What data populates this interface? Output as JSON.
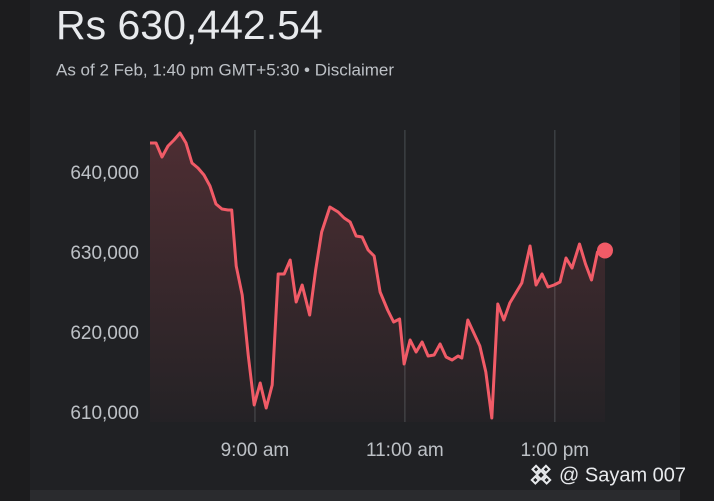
{
  "chart_data": {
    "type": "line",
    "title": "Rs 630,442.54",
    "subtitle": "As of 2 Feb, 1:40 pm GMT+5:30 • Disclaimer",
    "watermark": "@ Sayam 007",
    "color": "#f15b67",
    "grid": "x",
    "xlim": [
      7.6,
      13.67
    ],
    "ylim": [
      609000,
      646000
    ],
    "xticks": [
      {
        "value": 9,
        "label": "9:00 am"
      },
      {
        "value": 11,
        "label": "11:00 am"
      },
      {
        "value": 13,
        "label": "1:00 pm"
      }
    ],
    "yticks": [
      {
        "value": 610000,
        "label": "610,000"
      },
      {
        "value": 620000,
        "label": "620,000"
      },
      {
        "value": 630000,
        "label": "630,000"
      },
      {
        "value": 640000,
        "label": "640,000"
      }
    ],
    "x": [
      7.6,
      7.68,
      7.76,
      7.84,
      7.92,
      8.0,
      8.08,
      8.16,
      8.24,
      8.32,
      8.4,
      8.48,
      8.56,
      8.64,
      8.69,
      8.75,
      8.83,
      8.91,
      8.99,
      9.07,
      9.15,
      9.23,
      9.31,
      9.39,
      9.47,
      9.55,
      9.63,
      9.73,
      9.81,
      9.89,
      10.0,
      10.11,
      10.19,
      10.27,
      10.35,
      10.43,
      10.51,
      10.59,
      10.67,
      10.77,
      10.85,
      10.93,
      10.99,
      11.07,
      11.15,
      11.23,
      11.31,
      11.39,
      11.47,
      11.55,
      11.63,
      11.71,
      11.76,
      11.84,
      11.92,
      12.0,
      12.08,
      12.16,
      12.24,
      12.32,
      12.4,
      12.48,
      12.56,
      12.67,
      12.75,
      12.83,
      12.91,
      12.99,
      13.07,
      13.15,
      13.23,
      13.33,
      13.41,
      13.49,
      13.57,
      13.67
    ],
    "values": [
      643875,
      643875,
      642125,
      643500,
      644250,
      645125,
      643875,
      641375,
      640750,
      639875,
      638500,
      636250,
      635625,
      635500,
      635500,
      628500,
      624875,
      617375,
      611125,
      613875,
      610750,
      613625,
      627500,
      627500,
      629250,
      624000,
      626125,
      622375,
      628000,
      632750,
      635875,
      635250,
      634500,
      634000,
      632250,
      632125,
      630500,
      629750,
      625250,
      623000,
      621500,
      621875,
      616250,
      619250,
      617750,
      619000,
      617250,
      617375,
      618750,
      617125,
      616750,
      617250,
      617000,
      621750,
      620125,
      618500,
      615250,
      609500,
      623750,
      621750,
      623875,
      625125,
      626375,
      631000,
      626125,
      627500,
      625875,
      626125,
      626500,
      629500,
      628250,
      631250,
      628750,
      626750,
      630250,
      630442.54
    ]
  }
}
